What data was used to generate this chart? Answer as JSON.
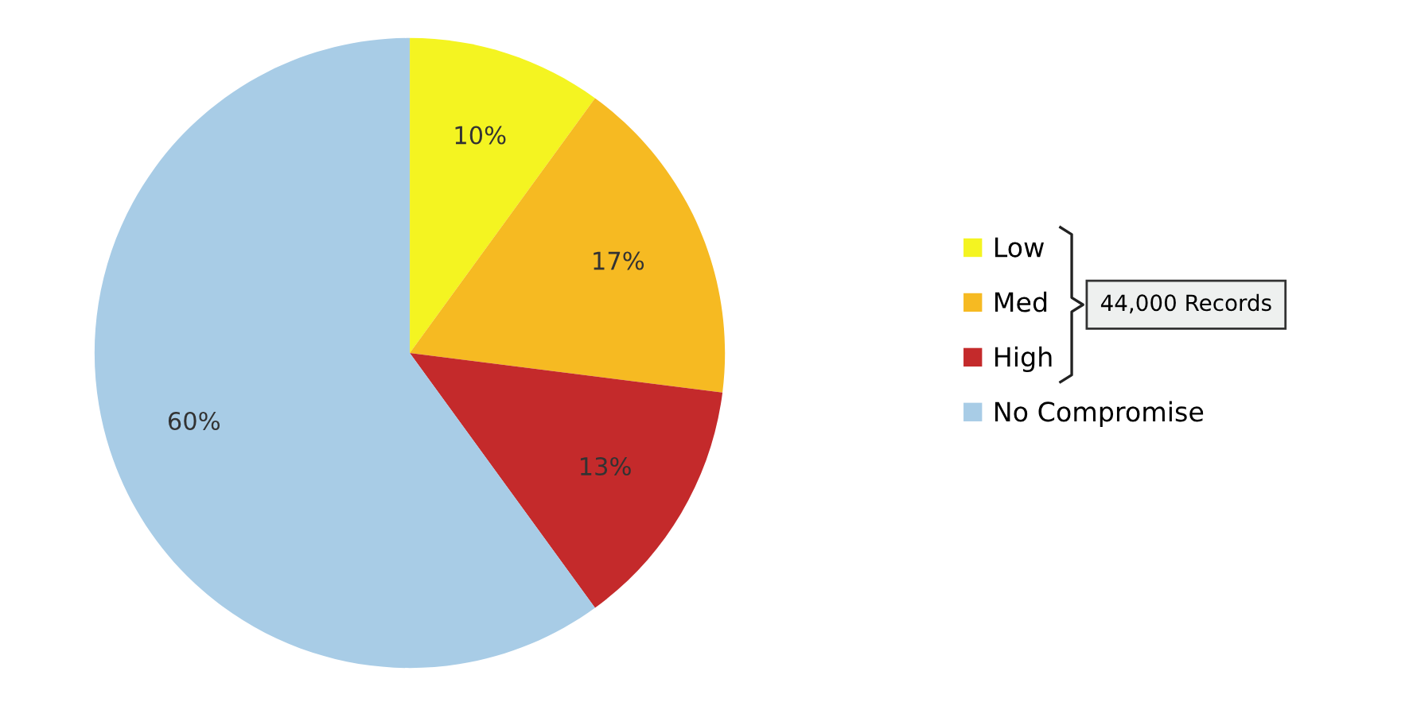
{
  "chart_data": {
    "type": "pie",
    "categories": [
      "Low",
      "Med",
      "High",
      "No Compromise"
    ],
    "values": [
      10,
      17,
      13,
      60
    ],
    "colors": [
      "#f4f421",
      "#f6ba22",
      "#c42a2b",
      "#a8cce6"
    ],
    "value_labels": [
      "10%",
      "17%",
      "13%",
      "60%"
    ],
    "legend": "right",
    "annotations": [
      "44,000 Records"
    ]
  }
}
